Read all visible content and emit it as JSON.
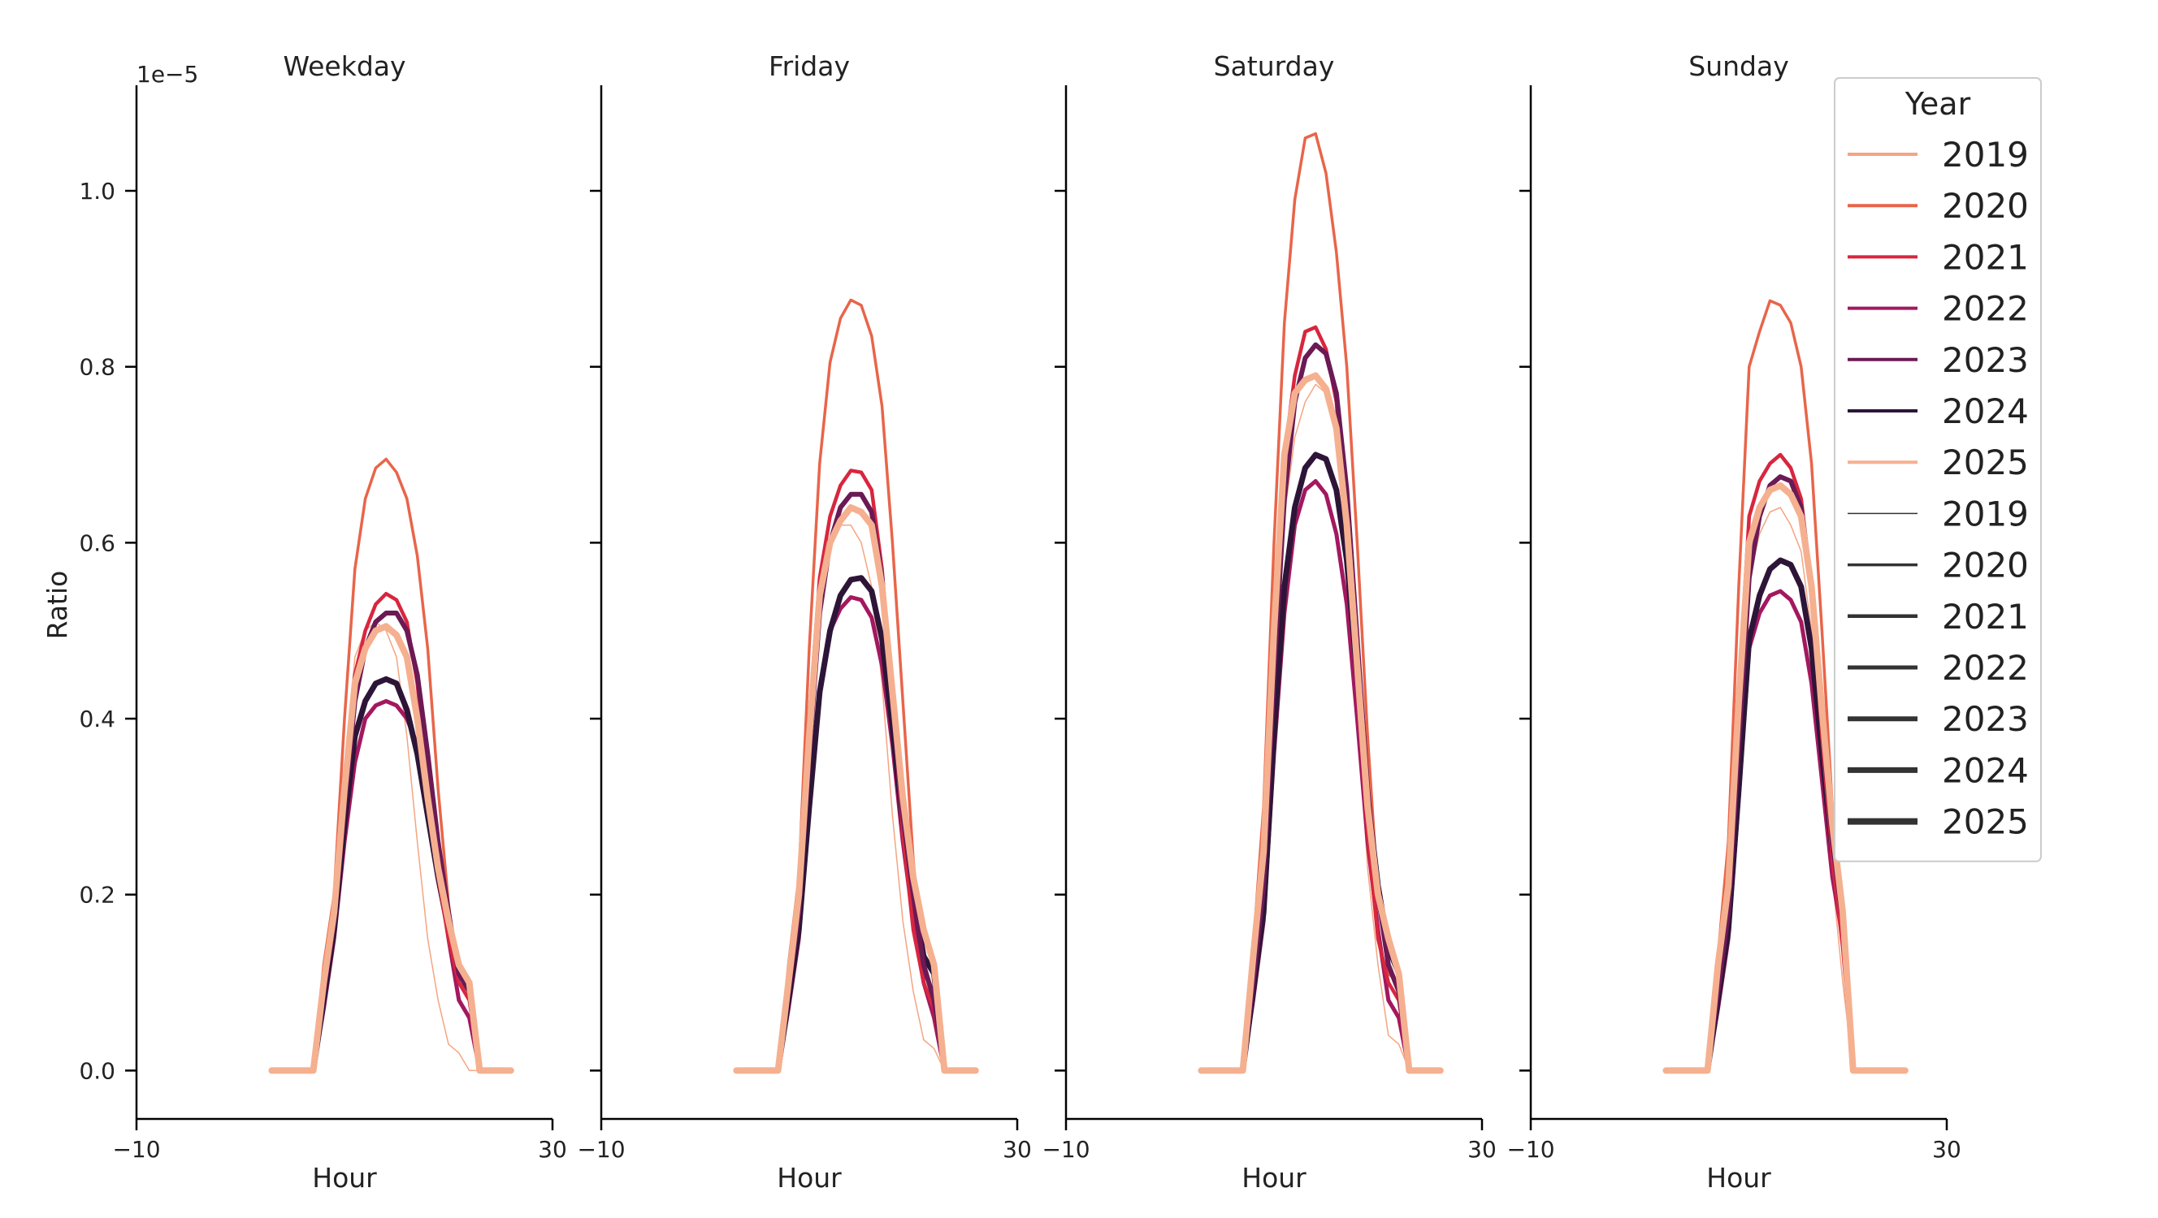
{
  "chart_data": {
    "type": "line",
    "panels": [
      "Weekday",
      "Friday",
      "Saturday",
      "Sunday"
    ],
    "xlabel": "Hour",
    "ylabel": "Ratio",
    "y_scale_label": "1e−5",
    "xlim": [
      -10,
      30
    ],
    "x_ticks": [
      -10,
      30
    ],
    "x_tick_labels": [
      "−10",
      "30"
    ],
    "ylim": [
      -0.055,
      1.12
    ],
    "y_ticks": [
      0.0,
      0.2,
      0.4,
      0.6,
      0.8,
      1.0
    ],
    "y_tick_labels": [
      "0.0",
      "0.2",
      "0.4",
      "0.6",
      "0.8",
      "1.0"
    ],
    "grid": false,
    "legend": {
      "title": "Year",
      "placement": "top-right",
      "hue_entries": [
        "2019",
        "2020",
        "2021",
        "2022",
        "2023",
        "2024",
        "2025"
      ],
      "size_entries": [
        "2019",
        "2020",
        "2021",
        "2022",
        "2023",
        "2024",
        "2025"
      ]
    },
    "colors": {
      "2019": "#f4a582",
      "2020": "#e8654a",
      "2021": "#d8263e",
      "2022": "#a3185f",
      "2023": "#6b1a55",
      "2024": "#2d1538",
      "2025": "#f5b090",
      "size_legend": "#333333"
    },
    "widths": {
      "2019": 1.5,
      "2020": 3.5,
      "2021": 4.5,
      "2022": 5,
      "2023": 6,
      "2024": 7,
      "2025": 8
    },
    "x": [
      0,
      1,
      2,
      3,
      4,
      5,
      6,
      7,
      8,
      9,
      10,
      11,
      12,
      13,
      14,
      15,
      16,
      17,
      18,
      19,
      20,
      21,
      22,
      23
    ],
    "series": [
      {
        "panel": "Weekday",
        "lines": [
          {
            "name": "2019",
            "values": [
              0,
              0,
              0,
              0,
              0,
              0.115,
              0.19,
              0.34,
              0.47,
              0.5,
              0.51,
              0.5,
              0.47,
              0.38,
              0.26,
              0.15,
              0.08,
              0.03,
              0.02,
              0,
              0,
              0,
              0,
              0
            ]
          },
          {
            "name": "2020",
            "values": [
              0,
              0,
              0,
              0,
              0,
              0.12,
              0.2,
              0.4,
              0.57,
              0.65,
              0.685,
              0.695,
              0.68,
              0.65,
              0.585,
              0.48,
              0.32,
              0.19,
              0.1,
              0.09,
              0,
              0,
              0,
              0
            ]
          },
          {
            "name": "2021",
            "values": [
              0,
              0,
              0,
              0,
              0,
              0.1,
              0.18,
              0.33,
              0.45,
              0.5,
              0.53,
              0.542,
              0.535,
              0.51,
              0.44,
              0.33,
              0.22,
              0.15,
              0.1,
              0.08,
              0,
              0,
              0,
              0
            ]
          },
          {
            "name": "2022",
            "values": [
              0,
              0,
              0,
              0,
              0,
              0.07,
              0.15,
              0.26,
              0.35,
              0.4,
              0.415,
              0.42,
              0.415,
              0.4,
              0.37,
              0.31,
              0.23,
              0.15,
              0.08,
              0.06,
              0,
              0,
              0,
              0
            ]
          },
          {
            "name": "2023",
            "values": [
              0,
              0,
              0,
              0,
              0,
              0.09,
              0.17,
              0.3,
              0.42,
              0.48,
              0.51,
              0.52,
              0.52,
              0.5,
              0.45,
              0.36,
              0.26,
              0.18,
              0.11,
              0.09,
              0,
              0,
              0,
              0
            ]
          },
          {
            "name": "2024",
            "values": [
              0,
              0,
              0,
              0,
              0,
              0.08,
              0.16,
              0.28,
              0.38,
              0.42,
              0.44,
              0.445,
              0.44,
              0.41,
              0.36,
              0.29,
              0.22,
              0.16,
              0.11,
              0.1,
              0,
              0,
              0,
              0
            ]
          },
          {
            "name": "2025",
            "values": [
              0,
              0,
              0,
              0,
              0,
              0.1,
              0.18,
              0.32,
              0.44,
              0.48,
              0.5,
              0.505,
              0.495,
              0.47,
              0.4,
              0.31,
              0.23,
              0.17,
              0.12,
              0.1,
              0,
              0,
              0,
              0
            ]
          }
        ]
      },
      {
        "panel": "Friday",
        "lines": [
          {
            "name": "2019",
            "values": [
              0,
              0,
              0,
              0,
              0,
              0.115,
              0.2,
              0.38,
              0.55,
              0.6,
              0.62,
              0.62,
              0.6,
              0.55,
              0.44,
              0.29,
              0.17,
              0.09,
              0.035,
              0.025,
              0,
              0,
              0,
              0
            ]
          },
          {
            "name": "2020",
            "values": [
              0,
              0,
              0,
              0,
              0,
              0.12,
              0.22,
              0.48,
              0.69,
              0.805,
              0.855,
              0.876,
              0.87,
              0.835,
              0.755,
              0.6,
              0.42,
              0.24,
              0.11,
              0.09,
              0,
              0,
              0,
              0
            ]
          },
          {
            "name": "2021",
            "values": [
              0,
              0,
              0,
              0,
              0,
              0.1,
              0.19,
              0.4,
              0.56,
              0.63,
              0.665,
              0.682,
              0.68,
              0.66,
              0.57,
              0.42,
              0.27,
              0.16,
              0.1,
              0.07,
              0,
              0,
              0,
              0
            ]
          },
          {
            "name": "2022",
            "values": [
              0,
              0,
              0,
              0,
              0,
              0.07,
              0.15,
              0.3,
              0.43,
              0.5,
              0.525,
              0.538,
              0.535,
              0.515,
              0.46,
              0.37,
              0.26,
              0.17,
              0.1,
              0.06,
              0,
              0,
              0,
              0
            ]
          },
          {
            "name": "2023",
            "values": [
              0,
              0,
              0,
              0,
              0,
              0.09,
              0.18,
              0.36,
              0.52,
              0.6,
              0.64,
              0.655,
              0.655,
              0.635,
              0.56,
              0.42,
              0.29,
              0.2,
              0.12,
              0.08,
              0,
              0,
              0,
              0
            ]
          },
          {
            "name": "2024",
            "values": [
              0,
              0,
              0,
              0,
              0,
              0.08,
              0.16,
              0.3,
              0.43,
              0.5,
              0.54,
              0.558,
              0.56,
              0.545,
              0.49,
              0.39,
              0.28,
              0.2,
              0.13,
              0.11,
              0,
              0,
              0,
              0
            ]
          },
          {
            "name": "2025",
            "values": [
              0,
              0,
              0,
              0,
              0,
              0.1,
              0.2,
              0.38,
              0.54,
              0.6,
              0.625,
              0.64,
              0.635,
              0.62,
              0.55,
              0.43,
              0.31,
              0.22,
              0.16,
              0.12,
              0,
              0,
              0,
              0
            ]
          }
        ]
      },
      {
        "panel": "Saturday",
        "lines": [
          {
            "name": "2019",
            "values": [
              0,
              0,
              0,
              0,
              0,
              0.13,
              0.24,
              0.45,
              0.63,
              0.72,
              0.76,
              0.78,
              0.77,
              0.72,
              0.6,
              0.41,
              0.23,
              0.12,
              0.04,
              0.03,
              0,
              0,
              0,
              0
            ]
          },
          {
            "name": "2020",
            "values": [
              0,
              0,
              0,
              0,
              0,
              0.14,
              0.3,
              0.6,
              0.85,
              0.99,
              1.06,
              1.065,
              1.02,
              0.93,
              0.8,
              0.6,
              0.38,
              0.2,
              0.11,
              0.1,
              0,
              0,
              0,
              0
            ]
          },
          {
            "name": "2021",
            "values": [
              0,
              0,
              0,
              0,
              0,
              0.12,
              0.24,
              0.5,
              0.7,
              0.79,
              0.84,
              0.845,
              0.82,
              0.76,
              0.62,
              0.44,
              0.27,
              0.15,
              0.1,
              0.08,
              0,
              0,
              0,
              0
            ]
          },
          {
            "name": "2022",
            "values": [
              0,
              0,
              0,
              0,
              0,
              0.08,
              0.17,
              0.36,
              0.52,
              0.62,
              0.66,
              0.67,
              0.655,
              0.61,
              0.53,
              0.4,
              0.26,
              0.16,
              0.08,
              0.06,
              0,
              0,
              0,
              0
            ]
          },
          {
            "name": "2023",
            "values": [
              0,
              0,
              0,
              0,
              0,
              0.1,
              0.21,
              0.45,
              0.65,
              0.76,
              0.81,
              0.825,
              0.815,
              0.77,
              0.66,
              0.49,
              0.32,
              0.2,
              0.12,
              0.09,
              0,
              0,
              0,
              0
            ]
          },
          {
            "name": "2024",
            "values": [
              0,
              0,
              0,
              0,
              0,
              0.09,
              0.18,
              0.38,
              0.55,
              0.64,
              0.685,
              0.7,
              0.695,
              0.66,
              0.58,
              0.45,
              0.31,
              0.21,
              0.14,
              0.11,
              0,
              0,
              0,
              0
            ]
          },
          {
            "name": "2025",
            "values": [
              0,
              0,
              0,
              0,
              0,
              0.13,
              0.25,
              0.5,
              0.7,
              0.77,
              0.785,
              0.79,
              0.775,
              0.73,
              0.62,
              0.46,
              0.3,
              0.2,
              0.15,
              0.11,
              0,
              0,
              0,
              0
            ]
          }
        ]
      },
      {
        "panel": "Sunday",
        "lines": [
          {
            "name": "2019",
            "values": [
              0,
              0,
              0,
              0,
              0,
              0.12,
              0.21,
              0.4,
              0.56,
              0.61,
              0.635,
              0.64,
              0.62,
              0.59,
              0.5,
              0.36,
              0.22,
              0.1,
              0,
              0,
              0,
              0,
              0,
              0
            ]
          },
          {
            "name": "2020",
            "values": [
              0,
              0,
              0,
              0,
              0,
              0.13,
              0.26,
              0.55,
              0.8,
              0.84,
              0.875,
              0.87,
              0.85,
              0.8,
              0.69,
              0.5,
              0.3,
              0.16,
              0,
              0,
              0,
              0,
              0,
              0
            ]
          },
          {
            "name": "2021",
            "values": [
              0,
              0,
              0,
              0,
              0,
              0.11,
              0.21,
              0.43,
              0.63,
              0.67,
              0.69,
              0.7,
              0.685,
              0.65,
              0.55,
              0.38,
              0.24,
              0.14,
              0,
              0,
              0,
              0,
              0,
              0
            ]
          },
          {
            "name": "2022",
            "values": [
              0,
              0,
              0,
              0,
              0,
              0.07,
              0.15,
              0.31,
              0.48,
              0.52,
              0.54,
              0.545,
              0.535,
              0.51,
              0.44,
              0.33,
              0.22,
              0.15,
              0,
              0,
              0,
              0,
              0,
              0
            ]
          },
          {
            "name": "2023",
            "values": [
              0,
              0,
              0,
              0,
              0,
              0.09,
              0.18,
              0.37,
              0.56,
              0.63,
              0.665,
              0.675,
              0.67,
              0.64,
              0.55,
              0.4,
              0.26,
              0.17,
              0,
              0,
              0,
              0,
              0,
              0
            ]
          },
          {
            "name": "2024",
            "values": [
              0,
              0,
              0,
              0,
              0,
              0.08,
              0.16,
              0.32,
              0.49,
              0.54,
              0.57,
              0.58,
              0.575,
              0.55,
              0.48,
              0.36,
              0.25,
              0.17,
              0,
              0,
              0,
              0,
              0,
              0
            ]
          },
          {
            "name": "2025",
            "values": [
              0,
              0,
              0,
              0,
              0,
              0.12,
              0.21,
              0.42,
              0.6,
              0.64,
              0.66,
              0.665,
              0.655,
              0.63,
              0.55,
              0.41,
              0.28,
              0.18,
              0,
              0,
              0,
              0,
              0,
              0
            ]
          }
        ]
      }
    ]
  }
}
